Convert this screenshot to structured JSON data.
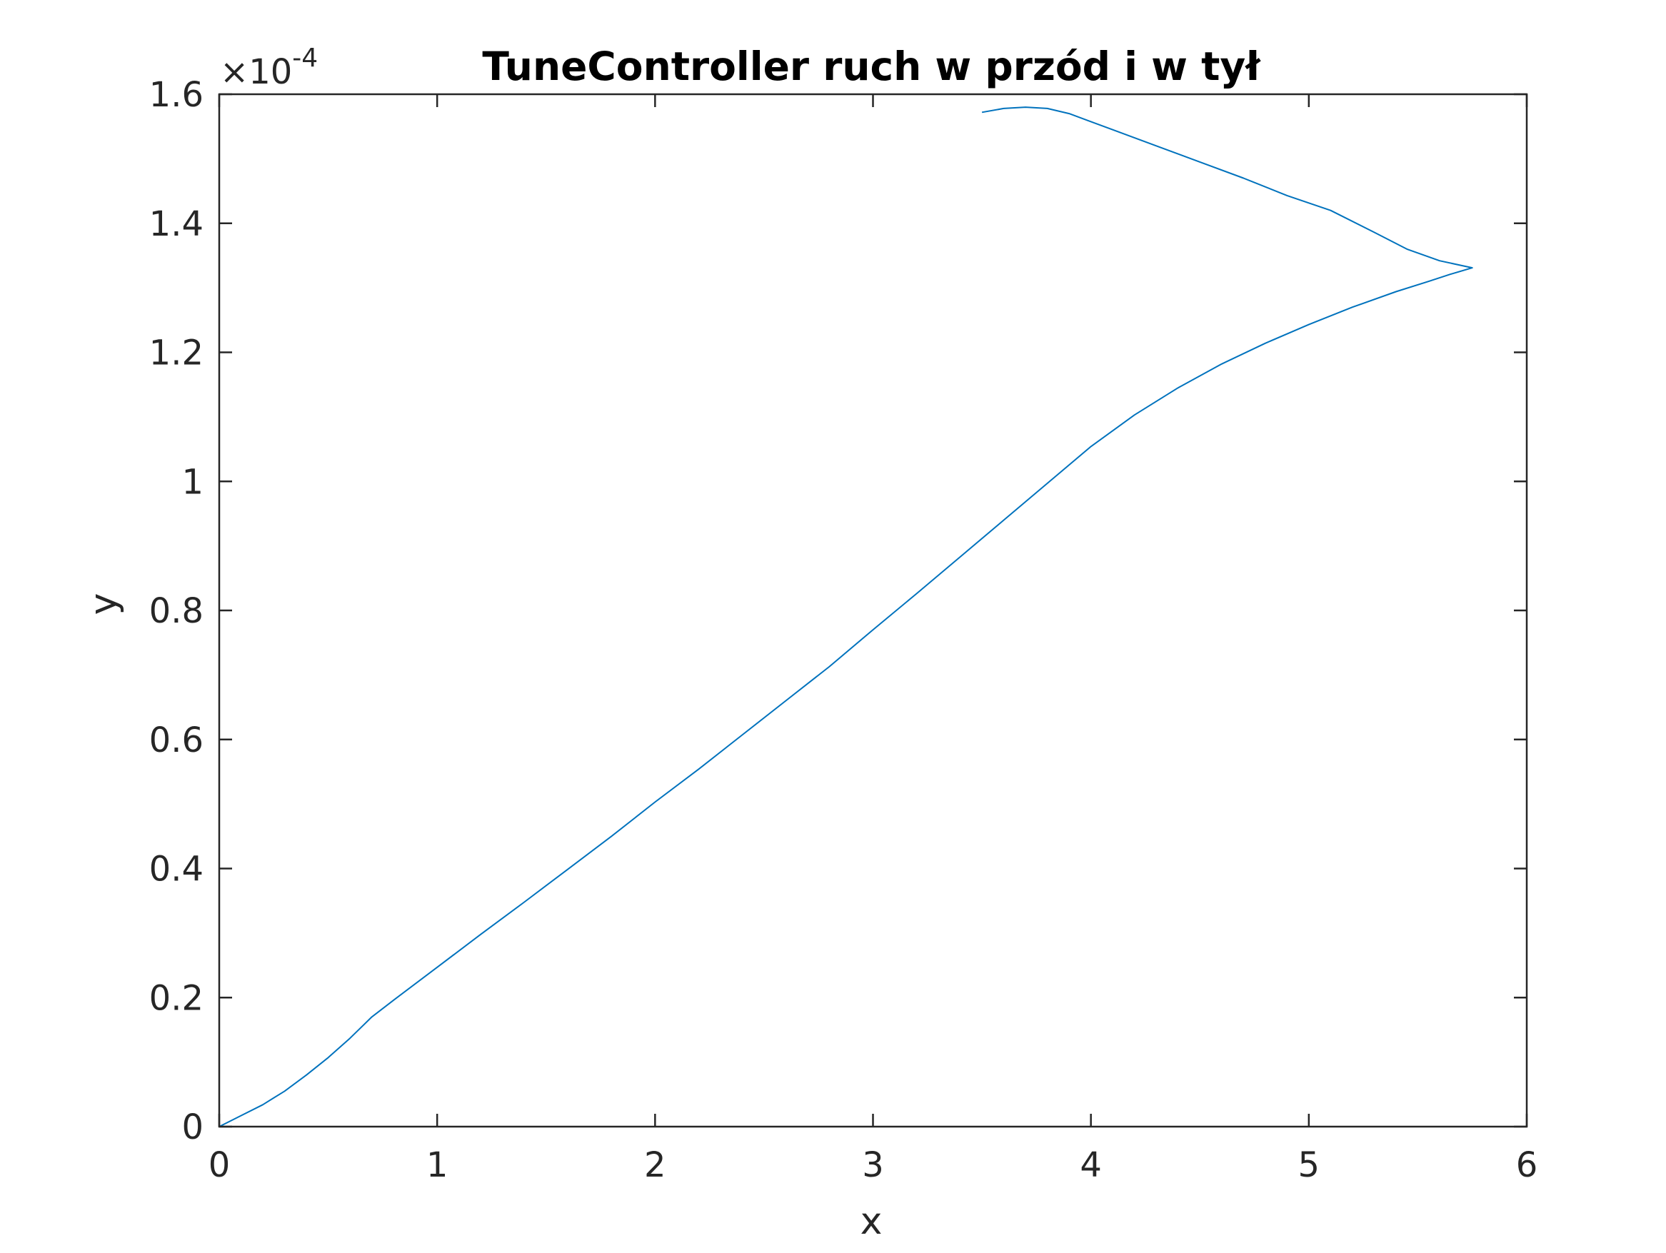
{
  "chart_data": {
    "type": "line",
    "title": "TuneController ruch w przód i w tył",
    "xlabel": "x",
    "ylabel": "y",
    "xlim": [
      0,
      6
    ],
    "ylim": [
      0,
      1.6
    ],
    "x_ticks": [
      "0",
      "1",
      "2",
      "3",
      "4",
      "5",
      "6"
    ],
    "y_ticks": [
      "0",
      "0.2",
      "0.4",
      "0.6",
      "0.8",
      "1",
      "1.2",
      "1.4",
      "1.6"
    ],
    "y_exponent": {
      "prefix": "×10",
      "power": "-4"
    },
    "grid": false,
    "box": true,
    "series": [
      {
        "color": "#0072bd",
        "x": [
          0,
          0.1,
          0.2,
          0.3,
          0.4,
          0.5,
          0.6,
          0.7,
          0.8,
          1.0,
          1.2,
          1.4,
          1.6,
          1.8,
          2.0,
          2.2,
          2.4,
          2.6,
          2.8,
          3.0,
          3.2,
          3.4,
          3.6,
          3.8,
          4.0,
          4.2,
          4.4,
          4.6,
          4.8,
          5.0,
          5.2,
          5.4,
          5.55,
          5.65,
          5.75,
          5.6,
          5.45,
          5.3,
          5.1,
          4.9,
          4.7,
          4.5,
          4.3,
          4.1,
          3.9,
          3.8,
          3.7,
          3.6,
          3.5
        ],
        "y": [
          0,
          0.017,
          0.034,
          0.055,
          0.08,
          0.107,
          0.137,
          0.17,
          0.196,
          0.247,
          0.298,
          0.348,
          0.399,
          0.45,
          0.503,
          0.554,
          0.607,
          0.66,
          0.713,
          0.77,
          0.826,
          0.883,
          0.94,
          0.997,
          1.054,
          1.103,
          1.145,
          1.182,
          1.214,
          1.243,
          1.27,
          1.294,
          1.31,
          1.321,
          1.331,
          1.342,
          1.36,
          1.386,
          1.42,
          1.443,
          1.47,
          1.495,
          1.52,
          1.545,
          1.57,
          1.578,
          1.58,
          1.578,
          1.572
        ]
      }
    ]
  }
}
